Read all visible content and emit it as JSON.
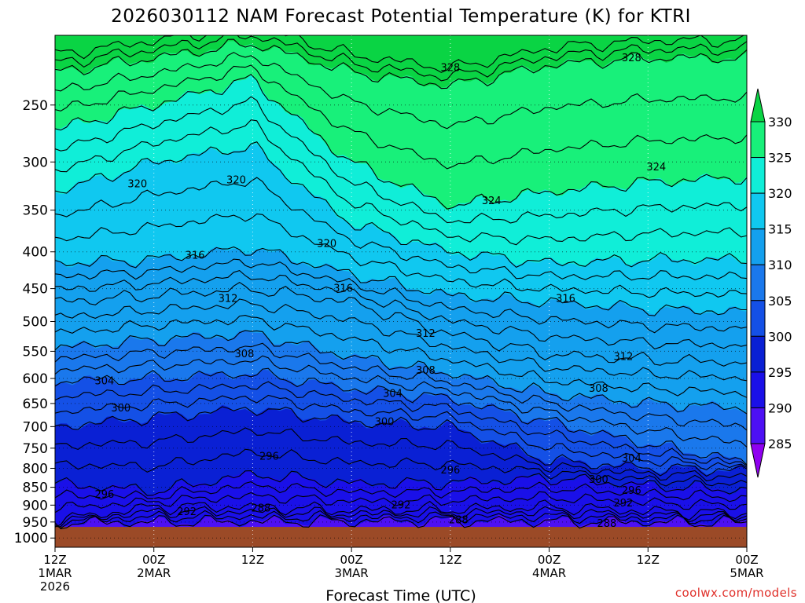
{
  "chart_data": {
    "type": "heatmap",
    "title": "2026030112 NAM Forecast Potential Temperature (K) for KTRI",
    "xlabel": "Forecast Time (UTC)",
    "ylabel": "",
    "units": "K",
    "credit": "coolwx.com/models",
    "x_range_hours": [
      0,
      84
    ],
    "y_axis": {
      "scale": "log-pressure",
      "range_hpa": [
        1030,
        200
      ],
      "ticks": [
        "250",
        "300",
        "350",
        "400",
        "450",
        "500",
        "550",
        "600",
        "650",
        "700",
        "750",
        "800",
        "850",
        "900",
        "950",
        "1000"
      ]
    },
    "x_ticks": [
      {
        "hour": 0,
        "time": "12Z",
        "date": "1MAR",
        "year": "2026"
      },
      {
        "hour": 12,
        "time": "00Z",
        "date": "2MAR",
        "year": ""
      },
      {
        "hour": 24,
        "time": "12Z",
        "date": "",
        "year": ""
      },
      {
        "hour": 36,
        "time": "00Z",
        "date": "3MAR",
        "year": ""
      },
      {
        "hour": 48,
        "time": "12Z",
        "date": "",
        "year": ""
      },
      {
        "hour": 60,
        "time": "00Z",
        "date": "4MAR",
        "year": ""
      },
      {
        "hour": 72,
        "time": "12Z",
        "date": "",
        "year": ""
      },
      {
        "hour": 84,
        "time": "00Z",
        "date": "5MAR",
        "year": ""
      }
    ],
    "colorbar": {
      "levels": [
        285,
        290,
        295,
        300,
        305,
        310,
        315,
        320,
        325,
        330
      ],
      "labels": [
        "285",
        "290",
        "295",
        "300",
        "305",
        "310",
        "315",
        "320",
        "325",
        "330"
      ],
      "colors": [
        "#8f00f0",
        "#4d10f4",
        "#1a10e8",
        "#0a20d4",
        "#1450e6",
        "#1a78ec",
        "#14a0ee",
        "#10c8f0",
        "#10eed8",
        "#18f07a",
        "#0ad444"
      ]
    },
    "ground_color": "#9b4a27",
    "surface_pressure_hpa": 965,
    "isentropes": [
      {
        "theta": 288,
        "p_hpa": [
          952,
          950,
          948,
          948,
          946,
          948,
          950,
          951
        ]
      },
      {
        "theta": 292,
        "p_hpa": [
          945,
          905,
          905,
          915,
          912,
          905,
          918,
          925
        ]
      },
      {
        "theta": 296,
        "p_hpa": [
          840,
          860,
          815,
          840,
          838,
          825,
          845,
          858
        ]
      },
      {
        "theta": 300,
        "p_hpa": [
          700,
          680,
          660,
          690,
          700,
          780,
          800,
          805
        ]
      },
      {
        "theta": 304,
        "p_hpa": [
          605,
          600,
          590,
          620,
          640,
          690,
          740,
          785
        ]
      },
      {
        "theta": 308,
        "p_hpa": [
          545,
          530,
          520,
          560,
          590,
          630,
          650,
          660
        ]
      },
      {
        "theta": 312,
        "p_hpa": [
          470,
          460,
          450,
          470,
          520,
          555,
          565,
          570
        ]
      },
      {
        "theta": 316,
        "p_hpa": [
          415,
          410,
          395,
          430,
          460,
          470,
          480,
          485
        ]
      },
      {
        "theta": 320,
        "p_hpa": [
          330,
          300,
          285,
          365,
          400,
          415,
          410,
          410
        ]
      },
      {
        "theta": 324,
        "p_hpa": [
          270,
          250,
          230,
          300,
          345,
          330,
          320,
          315
        ]
      },
      {
        "theta": 328,
        "p_hpa": [
          225,
          215,
          205,
          225,
          235,
          220,
          215,
          215
        ]
      }
    ],
    "contour_labels": [
      {
        "text": "328",
        "hour": 48,
        "p_hpa": 222
      },
      {
        "text": "328",
        "hour": 70,
        "p_hpa": 215
      },
      {
        "text": "324",
        "hour": 73,
        "p_hpa": 305
      },
      {
        "text": "324",
        "hour": 53,
        "p_hpa": 340
      },
      {
        "text": "320",
        "hour": 10,
        "p_hpa": 322
      },
      {
        "text": "320",
        "hour": 22,
        "p_hpa": 318
      },
      {
        "text": "320",
        "hour": 33,
        "p_hpa": 390
      },
      {
        "text": "316",
        "hour": 17,
        "p_hpa": 405
      },
      {
        "text": "316",
        "hour": 35,
        "p_hpa": 450
      },
      {
        "text": "316",
        "hour": 62,
        "p_hpa": 465
      },
      {
        "text": "312",
        "hour": 21,
        "p_hpa": 465
      },
      {
        "text": "312",
        "hour": 45,
        "p_hpa": 520
      },
      {
        "text": "312",
        "hour": 69,
        "p_hpa": 560
      },
      {
        "text": "308",
        "hour": 23,
        "p_hpa": 555
      },
      {
        "text": "308",
        "hour": 45,
        "p_hpa": 585
      },
      {
        "text": "308",
        "hour": 66,
        "p_hpa": 620
      },
      {
        "text": "304",
        "hour": 6,
        "p_hpa": 605
      },
      {
        "text": "304",
        "hour": 41,
        "p_hpa": 630
      },
      {
        "text": "304",
        "hour": 70,
        "p_hpa": 775
      },
      {
        "text": "300",
        "hour": 8,
        "p_hpa": 660
      },
      {
        "text": "300",
        "hour": 40,
        "p_hpa": 690
      },
      {
        "text": "300",
        "hour": 66,
        "p_hpa": 830
      },
      {
        "text": "296",
        "hour": 6,
        "p_hpa": 870
      },
      {
        "text": "296",
        "hour": 26,
        "p_hpa": 770
      },
      {
        "text": "296",
        "hour": 48,
        "p_hpa": 805
      },
      {
        "text": "296",
        "hour": 70,
        "p_hpa": 860
      },
      {
        "text": "292",
        "hour": 16,
        "p_hpa": 920
      },
      {
        "text": "292",
        "hour": 42,
        "p_hpa": 900
      },
      {
        "text": "292",
        "hour": 69,
        "p_hpa": 895
      },
      {
        "text": "288",
        "hour": 25,
        "p_hpa": 910
      },
      {
        "text": "288",
        "hour": 49,
        "p_hpa": 945
      },
      {
        "text": "288",
        "hour": 67,
        "p_hpa": 955
      }
    ]
  }
}
